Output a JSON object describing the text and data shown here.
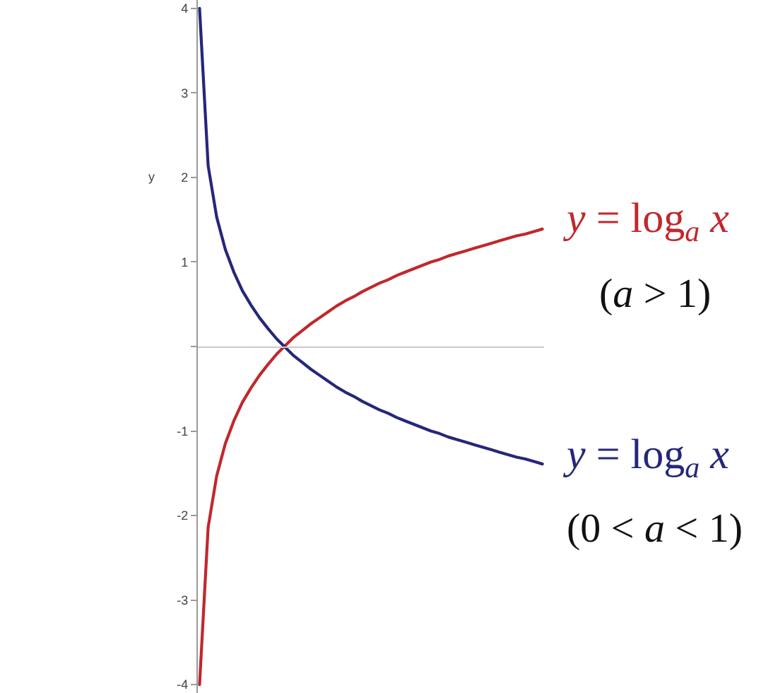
{
  "chart_data": {
    "type": "line",
    "ylabel": "y",
    "categories": [
      null,
      null,
      null,
      null,
      null,
      null,
      null,
      null,
      null,
      null,
      null,
      null,
      null,
      null,
      null,
      null,
      null,
      null,
      null,
      null,
      null,
      null,
      null,
      null,
      null,
      null,
      null,
      null,
      null,
      null,
      null,
      null,
      null,
      null,
      null,
      null,
      null,
      null,
      null,
      null,
      null
    ],
    "series": [
      {
        "name": "y = log$_{a}$ x",
        "color": "#c0282d",
        "values": [
          -4.0,
          -2.14,
          -1.53,
          -1.15,
          -0.88,
          -0.66,
          -0.49,
          -0.34,
          -0.21,
          -0.09,
          0.01,
          0.11,
          0.19,
          0.27,
          0.34,
          0.41,
          0.48,
          0.54,
          0.59,
          0.65,
          0.7,
          0.75,
          0.79,
          0.84,
          0.88,
          0.92,
          0.96,
          1.0,
          1.03,
          1.07,
          1.1,
          1.13,
          1.16,
          1.19,
          1.22,
          1.25,
          1.28,
          1.31,
          1.33,
          1.36,
          1.39
        ]
      },
      {
        "name": "y = log$_{a}$ x",
        "color": "#25277a",
        "values": [
          4.0,
          2.14,
          1.53,
          1.15,
          0.88,
          0.66,
          0.49,
          0.34,
          0.21,
          0.09,
          -0.01,
          -0.11,
          -0.19,
          -0.27,
          -0.34,
          -0.41,
          -0.48,
          -0.54,
          -0.59,
          -0.65,
          -0.7,
          -0.75,
          -0.79,
          -0.84,
          -0.88,
          -0.92,
          -0.96,
          -1.0,
          -1.03,
          -1.07,
          -1.1,
          -1.13,
          -1.16,
          -1.19,
          -1.22,
          -1.25,
          -1.28,
          -1.31,
          -1.33,
          -1.36,
          -1.39
        ]
      }
    ],
    "annotations": [
      "(a > 1)",
      "(0 < a < 1)"
    ],
    "ylim": [
      -4.1,
      4.1
    ],
    "yticks": [
      -4,
      -3,
      -2,
      -1,
      {
        "value": 0,
        "label": null
      },
      1,
      2,
      3,
      4
    ],
    "tick_labels": "y",
    "legend": false,
    "marker": "none",
    "line_style": "solid"
  }
}
